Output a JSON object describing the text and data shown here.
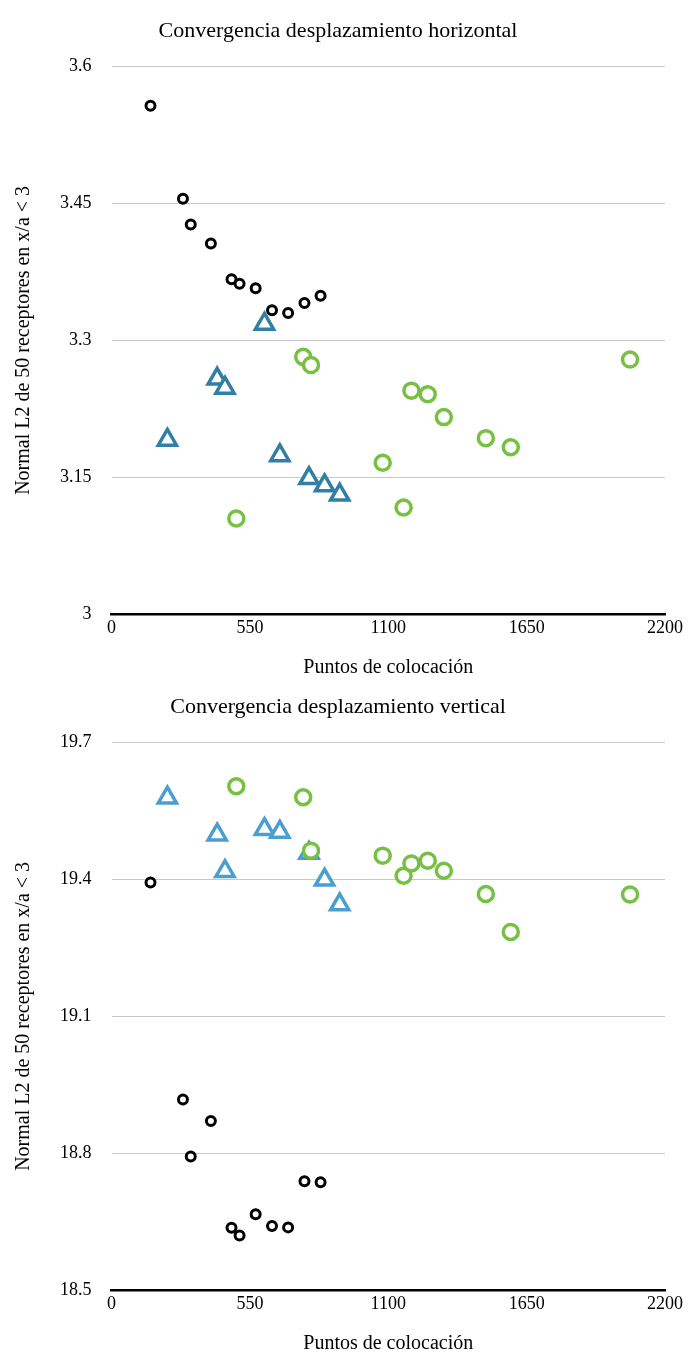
{
  "chart_data": [
    {
      "type": "scatter",
      "title": "Convergencia desplazamiento horizontal",
      "xlabel": "Puntos de colocación",
      "ylabel": "Normal L2 de 50 receptores en x/a < 3",
      "xlim": [
        0,
        2200
      ],
      "xticks": [
        0,
        550,
        1100,
        1650,
        2200
      ],
      "ylim": [
        3,
        3.6
      ],
      "yticks": [
        3,
        3.15,
        3.3,
        3.45,
        3.6
      ],
      "grid": "y",
      "legend": false,
      "series": [
        {
          "color": "#000000",
          "marker": "circle",
          "x": [
            155,
            284,
            315,
            395,
            477,
            509,
            573,
            638,
            702,
            767,
            831
          ],
          "values": [
            3.557,
            3.455,
            3.427,
            3.406,
            3.367,
            3.362,
            3.357,
            3.333,
            3.33,
            3.341,
            3.349
          ]
        },
        {
          "color": "#317fa5",
          "marker": "triangle",
          "x": [
            222,
            420,
            451,
            608,
            669,
            785,
            847,
            907
          ],
          "values": [
            3.191,
            3.258,
            3.248,
            3.318,
            3.174,
            3.149,
            3.141,
            3.131
          ]
        },
        {
          "color": "#77c043",
          "marker": "circle",
          "x": [
            496,
            762,
            793,
            1078,
            1161,
            1192,
            1257,
            1321,
            1488,
            1587,
            2061
          ],
          "values": [
            3.105,
            3.282,
            3.273,
            3.166,
            3.117,
            3.245,
            3.241,
            3.216,
            3.193,
            3.183,
            3.279
          ]
        }
      ]
    },
    {
      "type": "scatter",
      "title": "Convergencia desplazamiento vertical",
      "xlabel": "Puntos de colocación",
      "ylabel": "Normal L2 de 50 receptores en x/a < 3",
      "xlim": [
        0,
        2200
      ],
      "xticks": [
        0,
        550,
        1100,
        1650,
        2200
      ],
      "ylim": [
        18.5,
        19.7
      ],
      "yticks": [
        18.5,
        18.8,
        19.1,
        19.4,
        19.7
      ],
      "grid": "y",
      "legend": false,
      "series": [
        {
          "color": "#000000",
          "marker": "circle",
          "x": [
            155,
            284,
            315,
            395,
            477,
            509,
            573,
            638,
            702,
            767,
            831
          ],
          "values": [
            19.393,
            18.918,
            18.793,
            18.871,
            18.637,
            18.62,
            18.667,
            18.641,
            18.638,
            18.739,
            18.737
          ]
        },
        {
          "color": "#4a9fd0",
          "marker": "triangle",
          "x": [
            222,
            420,
            451,
            608,
            669,
            785,
            847,
            907
          ],
          "values": [
            19.579,
            19.498,
            19.418,
            19.51,
            19.504,
            19.458,
            19.399,
            19.345
          ]
        },
        {
          "color": "#77c043",
          "marker": "circle",
          "x": [
            496,
            762,
            793,
            1078,
            1161,
            1192,
            1257,
            1321,
            1488,
            1587,
            2061
          ],
          "values": [
            19.604,
            19.58,
            19.463,
            19.452,
            19.408,
            19.435,
            19.441,
            19.419,
            19.368,
            19.285,
            19.367
          ]
        }
      ]
    }
  ]
}
